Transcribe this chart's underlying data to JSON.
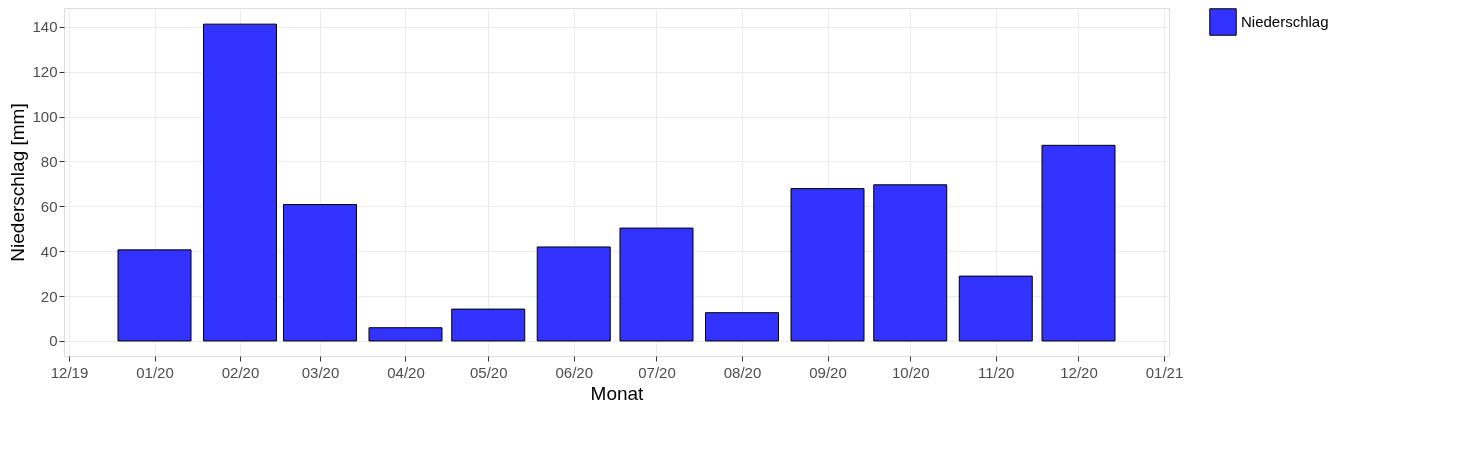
{
  "chart_data": {
    "type": "bar",
    "xlabel": "Monat",
    "ylabel": "Niederschlag [mm]",
    "x": [
      "2020-01-01",
      "2020-02-01",
      "2020-03-01",
      "2020-04-01",
      "2020-05-01",
      "2020-06-01",
      "2020-07-01",
      "2020-08-01",
      "2020-09-01",
      "2020-10-01",
      "2020-11-01",
      "2020-12-01"
    ],
    "series": [
      {
        "name": "Niederschlag",
        "color": "#3333ff",
        "values": [
          40.6,
          141.2,
          60.8,
          5.9,
          14.2,
          41.9,
          50.3,
          12.6,
          67.9,
          69.6,
          28.9,
          87.2
        ]
      }
    ],
    "xlim": [
      "2019-12-01",
      "2021-01-01"
    ],
    "xticks": [
      {
        "value": "2019-12-01",
        "label": "12/19"
      },
      {
        "value": "2020-01-01",
        "label": "01/20"
      },
      {
        "value": "2020-02-01",
        "label": "02/20"
      },
      {
        "value": "2020-03-01",
        "label": "03/20"
      },
      {
        "value": "2020-04-01",
        "label": "04/20"
      },
      {
        "value": "2020-05-01",
        "label": "05/20"
      },
      {
        "value": "2020-06-01",
        "label": "06/20"
      },
      {
        "value": "2020-07-01",
        "label": "07/20"
      },
      {
        "value": "2020-08-01",
        "label": "08/20"
      },
      {
        "value": "2020-09-01",
        "label": "09/20"
      },
      {
        "value": "2020-10-01",
        "label": "10/20"
      },
      {
        "value": "2020-11-01",
        "label": "11/20"
      },
      {
        "value": "2020-12-01",
        "label": "12/20"
      },
      {
        "value": "2021-01-01",
        "label": "01/21"
      }
    ],
    "ylim": [
      -6.7,
      148.4
    ],
    "yticks": [
      0,
      20,
      40,
      60,
      80,
      100,
      120,
      140
    ],
    "grid": true,
    "legend": "right"
  }
}
